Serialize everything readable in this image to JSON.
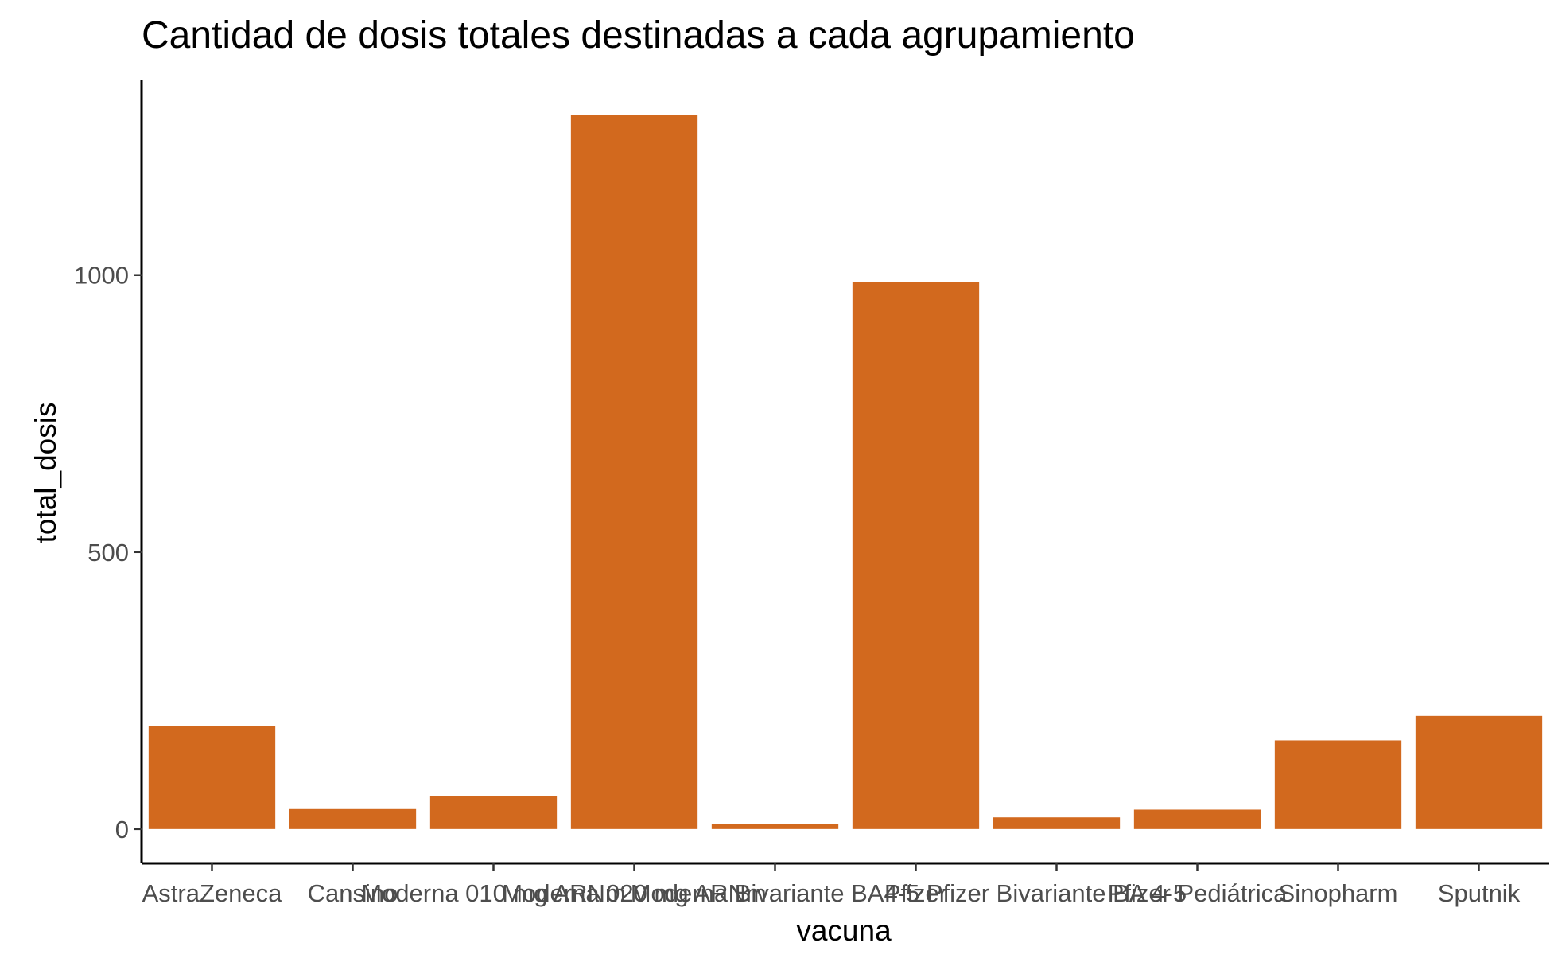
{
  "chart_data": {
    "type": "bar",
    "title": "Cantidad de dosis totales destinadas a cada agrupamiento",
    "xlabel": "vacuna",
    "ylabel": "total_dosis",
    "categories": [
      "AstraZeneca",
      "Cansino",
      "Moderna 010 mg ARNm",
      "Moderna 020 mg ARNm",
      "Moderna Bivariante BA4-5",
      "Pfizer",
      "Pfizer Bivariante BA 4-5",
      "Pfizer Pediátrica",
      "Sinopharm",
      "Sputnik"
    ],
    "values": [
      186,
      36,
      59,
      1289,
      9,
      988,
      21,
      35,
      160,
      204
    ],
    "ylim": [
      -62,
      1353
    ],
    "yticks": [
      0,
      500,
      1000
    ],
    "bar_color": "#D2691E",
    "grid": false,
    "legend": "none"
  }
}
